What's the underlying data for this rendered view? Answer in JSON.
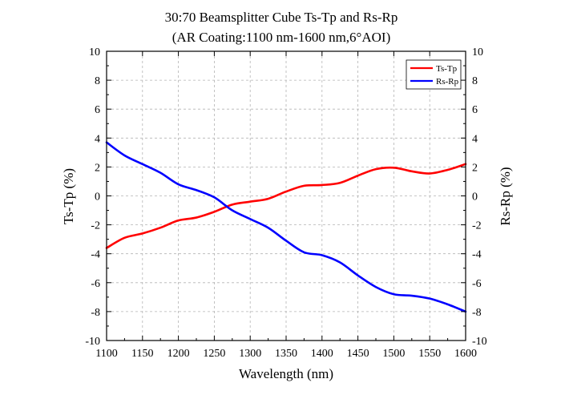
{
  "chart_data": {
    "type": "line",
    "title": "30:70 Beamsplitter Cube Ts-Tp and Rs-Rp",
    "subtitle": "(AR Coating:1100 nm-1600 nm,6°AOI)",
    "xlabel": "Wavelength (nm)",
    "ylabel": "Ts-Tp (%)",
    "ylabel_right": "Rs-Rp (%)",
    "xlim": [
      1100,
      1600
    ],
    "ylim": [
      -10,
      10
    ],
    "x_ticks": [
      1100,
      1150,
      1200,
      1250,
      1300,
      1350,
      1400,
      1450,
      1500,
      1550,
      1600
    ],
    "y_ticks": [
      -10,
      -8,
      -6,
      -4,
      -2,
      0,
      2,
      4,
      6,
      8,
      10
    ],
    "grid": true,
    "legend_position": "top-right",
    "series": [
      {
        "name": "Ts-Tp",
        "color": "#ff0000",
        "x": [
          1100,
          1125,
          1150,
          1175,
          1200,
          1225,
          1250,
          1275,
          1300,
          1325,
          1350,
          1375,
          1400,
          1425,
          1450,
          1475,
          1500,
          1525,
          1550,
          1575,
          1600
        ],
        "values": [
          -3.6,
          -2.9,
          -2.6,
          -2.2,
          -1.7,
          -1.5,
          -1.1,
          -0.6,
          -0.4,
          -0.2,
          0.3,
          0.7,
          0.75,
          0.9,
          1.4,
          1.85,
          1.95,
          1.7,
          1.55,
          1.8,
          2.2
        ]
      },
      {
        "name": "Rs-Rp",
        "color": "#0000ff",
        "x": [
          1100,
          1125,
          1150,
          1175,
          1200,
          1225,
          1250,
          1275,
          1300,
          1325,
          1350,
          1375,
          1400,
          1425,
          1450,
          1475,
          1500,
          1525,
          1550,
          1575,
          1600
        ],
        "values": [
          3.7,
          2.8,
          2.2,
          1.6,
          0.8,
          0.4,
          -0.1,
          -1.0,
          -1.6,
          -2.2,
          -3.1,
          -3.9,
          -4.1,
          -4.6,
          -5.5,
          -6.3,
          -6.8,
          -6.9,
          -7.1,
          -7.5,
          -8.0
        ]
      }
    ]
  }
}
